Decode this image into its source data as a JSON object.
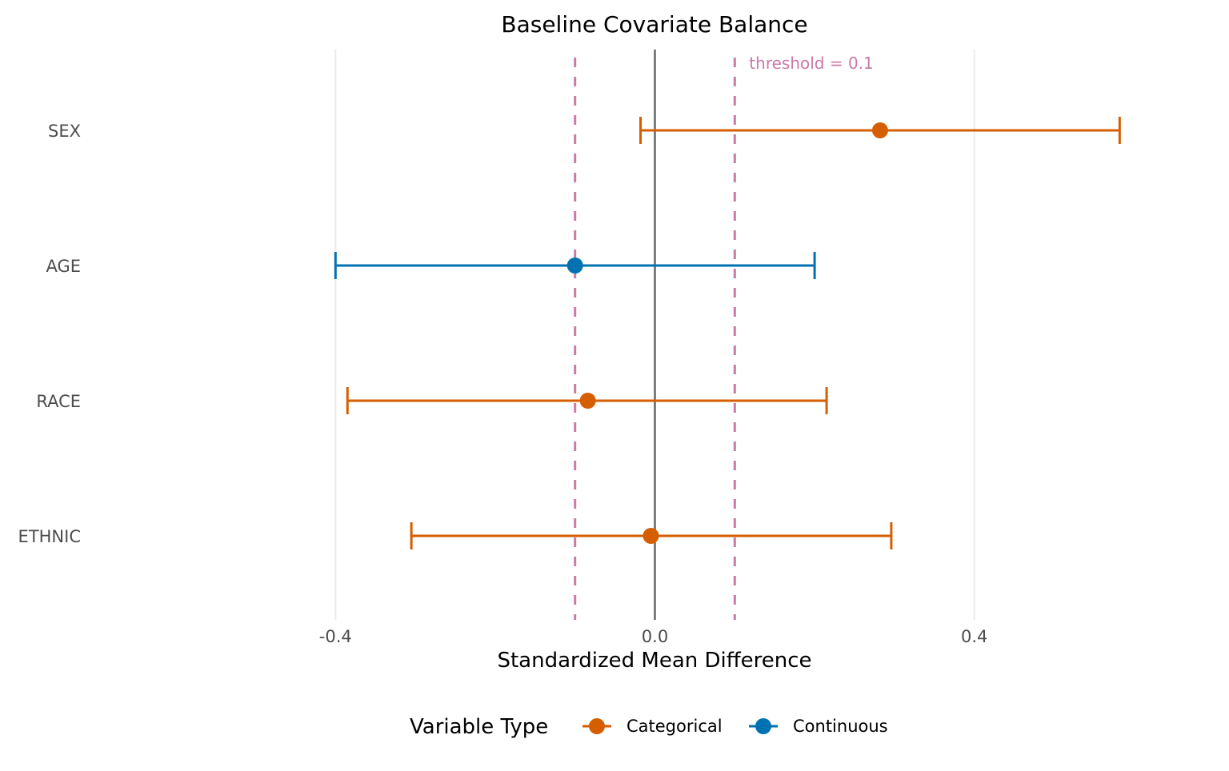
{
  "chart_data": {
    "type": "scatter",
    "subtype": "forest-plot-with-error-bars",
    "title": "Baseline Covariate Balance",
    "xlabel": "Standardized Mean Difference",
    "ylabel": "",
    "xlim": [
      -0.6,
      0.72
    ],
    "x_ticks": [
      {
        "value": -0.4,
        "label": "-0.4"
      },
      {
        "value": 0.0,
        "label": "0.0"
      },
      {
        "value": 0.4,
        "label": "0.4"
      }
    ],
    "categories": [
      "SEX",
      "AGE",
      "RACE",
      "ETHNIC"
    ],
    "points": [
      {
        "variable": "SEX",
        "type": "Categorical",
        "smd": 0.282,
        "lower": -0.018,
        "upper": 0.582
      },
      {
        "variable": "AGE",
        "type": "Continuous",
        "smd": -0.1,
        "lower": -0.4,
        "upper": 0.2
      },
      {
        "variable": "RACE",
        "type": "Categorical",
        "smd": -0.084,
        "lower": -0.385,
        "upper": 0.215
      },
      {
        "variable": "ETHNIC",
        "type": "Categorical",
        "smd": -0.005,
        "lower": -0.305,
        "upper": 0.296
      }
    ],
    "reference_line": {
      "value": 0.0,
      "color": "#666666"
    },
    "threshold_lines": {
      "values": [
        -0.1,
        0.1
      ],
      "color": "#CC79A7",
      "style": "dashed"
    },
    "annotations": [
      {
        "text": "threshold = 0.1",
        "x": 0.1,
        "color": "#CC79A7"
      }
    ],
    "legend": {
      "title": "Variable Type",
      "position": "bottom",
      "entries": [
        {
          "label": "Categorical",
          "color": "#D55E00"
        },
        {
          "label": "Continuous",
          "color": "#0072B2"
        }
      ]
    },
    "grid": {
      "major_x": true,
      "color": "#EBEBEB"
    }
  }
}
